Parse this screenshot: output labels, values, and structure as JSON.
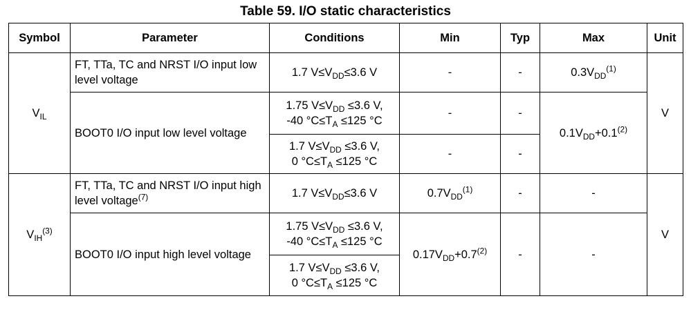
{
  "caption": "Table 59. I/O static characteristics",
  "headers": {
    "symbol": "Symbol",
    "parameter": "Parameter",
    "conditions": "Conditions",
    "min": "Min",
    "typ": "Typ",
    "max": "Max",
    "unit": "Unit"
  },
  "vil": {
    "symbol_base": "V",
    "symbol_sub": "IL",
    "unit": "V",
    "row1": {
      "parameter": "FT, TTa, TC and NRST I/O input low level voltage",
      "cond_a": "1.7 V≤V",
      "cond_sub": "DD",
      "cond_b": "≤3.6 V",
      "min": "-",
      "typ": "-",
      "max_base": "0.3V",
      "max_sub": "DD",
      "max_sup": "(1)"
    },
    "boot": {
      "parameter": "BOOT0 I/O input low level voltage",
      "cond1_l1a": "1.75 V≤V",
      "cond1_l1sub": "DD",
      "cond1_l1b": " ≤3.6 V,",
      "cond1_l2a": "-40 °C≤T",
      "cond1_l2sub": "A",
      "cond1_l2b": " ≤125 °C",
      "cond2_l1a": "1.7 V≤V",
      "cond2_l1sub": "DD",
      "cond2_l1b": " ≤3.6 V,",
      "cond2_l2a": "0 °C≤T",
      "cond2_l2sub": "A",
      "cond2_l2b": " ≤125 °C",
      "min1": "-",
      "typ1": "-",
      "min2": "-",
      "typ2": "-",
      "max_a": "0.1V",
      "max_sub": "DD",
      "max_b": "+0.1",
      "max_sup": "(2)"
    }
  },
  "vih": {
    "symbol_base": "V",
    "symbol_sub": "IH",
    "symbol_sup": "(3)",
    "unit": "V",
    "row1": {
      "parameter": "FT, TTa, TC and NRST I/O input high level voltage",
      "parameter_sup": "(7)",
      "cond_a": "1.7 V≤V",
      "cond_sub": "DD",
      "cond_b": "≤3.6 V",
      "min_base": "0.7V",
      "min_sub": "DD",
      "min_sup": "(1)",
      "typ": "-",
      "max": "-"
    },
    "boot": {
      "parameter": "BOOT0 I/O input high level voltage",
      "cond1_l1a": "1.75 V≤V",
      "cond1_l1sub": "DD",
      "cond1_l1b": " ≤3.6 V,",
      "cond1_l2a": "-40 °C≤T",
      "cond1_l2sub": "A",
      "cond1_l2b": " ≤125 °C",
      "cond2_l1a": "1.7 V≤V",
      "cond2_l1sub": "DD",
      "cond2_l1b": " ≤3.6 V,",
      "cond2_l2a": "0 °C≤T",
      "cond2_l2sub": "A",
      "cond2_l2b": " ≤125 °C",
      "min_a": "0.17V",
      "min_sub": "DD",
      "min_b": "+0.7",
      "min_sup": "(2)",
      "typ": "-",
      "max": "-"
    }
  }
}
